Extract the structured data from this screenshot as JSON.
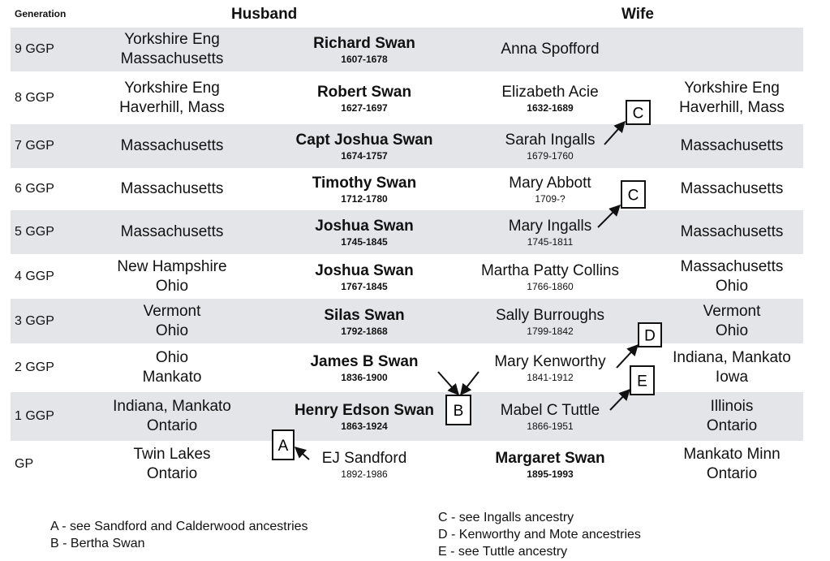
{
  "headers": {
    "generation": "Generation",
    "husband": "Husband",
    "wife": "Wife"
  },
  "rows": [
    {
      "gen": "9 GGP",
      "husband_place": [
        "Yorkshire Eng",
        "Massachusetts"
      ],
      "husband": "Richard Swan",
      "husband_dates": "1607-1678",
      "husband_bold": true,
      "husband_dates_bold": true,
      "wife": "Anna Spofford",
      "wife_dates": "",
      "wife_bold": false,
      "wife_dates_bold": false,
      "wife_place": []
    },
    {
      "gen": "8 GGP",
      "husband_place": [
        "Yorkshire Eng",
        "Haverhill, Mass"
      ],
      "husband": "Robert Swan",
      "husband_dates": "1627-1697",
      "husband_bold": true,
      "husband_dates_bold": true,
      "wife": "Elizabeth Acie",
      "wife_dates": "1632-1689",
      "wife_bold": false,
      "wife_dates_bold": true,
      "wife_place": [
        "Yorkshire Eng",
        "Haverhill, Mass"
      ]
    },
    {
      "gen": "7 GGP",
      "husband_place": [
        "Massachusetts"
      ],
      "husband": "Capt Joshua Swan",
      "husband_dates": "1674-1757",
      "husband_bold": true,
      "husband_dates_bold": true,
      "wife": "Sarah Ingalls",
      "wife_dates": "1679-1760",
      "wife_bold": false,
      "wife_dates_bold": false,
      "wife_place": [
        "Massachusetts"
      ]
    },
    {
      "gen": "6 GGP",
      "husband_place": [
        "Massachusetts"
      ],
      "husband": "Timothy Swan",
      "husband_dates": "1712-1780",
      "husband_bold": true,
      "husband_dates_bold": true,
      "wife": "Mary Abbott",
      "wife_dates": "1709-?",
      "wife_bold": false,
      "wife_dates_bold": false,
      "wife_place": [
        "Massachusetts"
      ]
    },
    {
      "gen": "5 GGP",
      "husband_place": [
        "Massachusetts"
      ],
      "husband": "Joshua Swan",
      "husband_dates": "1745-1845",
      "husband_bold": true,
      "husband_dates_bold": true,
      "wife": "Mary Ingalls",
      "wife_dates": "1745-1811",
      "wife_bold": false,
      "wife_dates_bold": false,
      "wife_place": [
        "Massachusetts"
      ]
    },
    {
      "gen": "4 GGP",
      "husband_place": [
        "New Hampshire",
        "Ohio"
      ],
      "husband": "Joshua Swan",
      "husband_dates": "1767-1845",
      "husband_bold": true,
      "husband_dates_bold": true,
      "wife": "Martha Patty Collins",
      "wife_dates": "1766-1860",
      "wife_bold": false,
      "wife_dates_bold": false,
      "wife_place": [
        "Massachusetts",
        "Ohio"
      ]
    },
    {
      "gen": "3 GGP",
      "husband_place": [
        "Vermont",
        "Ohio"
      ],
      "husband": "Silas Swan",
      "husband_dates": "1792-1868",
      "husband_bold": true,
      "husband_dates_bold": true,
      "wife": "Sally Burroughs",
      "wife_dates": "1799-1842",
      "wife_bold": false,
      "wife_dates_bold": false,
      "wife_place": [
        "Vermont",
        "Ohio"
      ]
    },
    {
      "gen": "2 GGP",
      "husband_place": [
        "Ohio",
        "Mankato"
      ],
      "husband": "James B Swan",
      "husband_dates": "1836-1900",
      "husband_bold": true,
      "husband_dates_bold": true,
      "wife": "Mary Kenworthy",
      "wife_dates": "1841-1912",
      "wife_bold": false,
      "wife_dates_bold": false,
      "wife_place": [
        "Indiana, Mankato",
        "Iowa"
      ]
    },
    {
      "gen": "1 GGP",
      "husband_place": [
        "Indiana, Mankato",
        "Ontario"
      ],
      "husband": "Henry Edson Swan",
      "husband_dates": "1863-1924",
      "husband_bold": true,
      "husband_dates_bold": true,
      "wife": "Mabel C Tuttle",
      "wife_dates": "1866-1951",
      "wife_bold": false,
      "wife_dates_bold": false,
      "wife_place": [
        "Illinois",
        "Ontario"
      ]
    },
    {
      "gen": "GP",
      "husband_place": [
        "Twin Lakes",
        "Ontario"
      ],
      "husband": "EJ Sandford",
      "husband_dates": "1892-1986",
      "husband_bold": false,
      "husband_dates_bold": false,
      "wife": "Margaret Swan",
      "wife_dates": "1895-1993",
      "wife_bold": true,
      "wife_dates_bold": true,
      "wife_place": [
        "Mankato Minn",
        "Ontario"
      ]
    }
  ],
  "callouts": [
    "C",
    "C",
    "D",
    "E",
    "B",
    "A"
  ],
  "legend_left": [
    "A - see Sandford and Calderwood ancestries",
    "B - Bertha Swan"
  ],
  "legend_right": [
    "C - see Ingalls ancestry",
    "D - Kenworthy and Mote ancestries",
    "E - see Tuttle ancestry"
  ]
}
